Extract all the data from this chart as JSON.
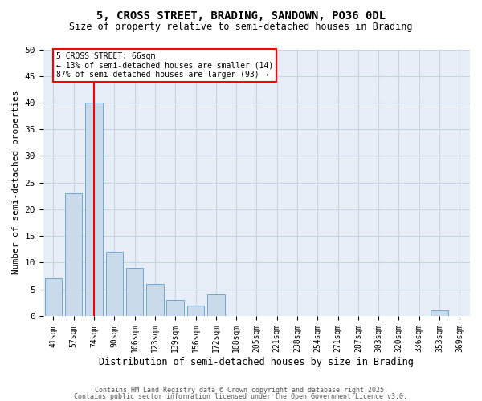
{
  "title_line1": "5, CROSS STREET, BRADING, SANDOWN, PO36 0DL",
  "title_line2": "Size of property relative to semi-detached houses in Brading",
  "xlabel": "Distribution of semi-detached houses by size in Brading",
  "ylabel": "Number of semi-detached properties",
  "categories": [
    "41sqm",
    "57sqm",
    "74sqm",
    "90sqm",
    "106sqm",
    "123sqm",
    "139sqm",
    "156sqm",
    "172sqm",
    "188sqm",
    "205sqm",
    "221sqm",
    "238sqm",
    "254sqm",
    "271sqm",
    "287sqm",
    "303sqm",
    "320sqm",
    "336sqm",
    "353sqm",
    "369sqm"
  ],
  "values": [
    7,
    23,
    40,
    12,
    9,
    6,
    3,
    2,
    4,
    0,
    0,
    0,
    0,
    0,
    0,
    0,
    0,
    0,
    0,
    1,
    0
  ],
  "bar_color": "#c9daea",
  "bar_edge_color": "#6aaad4",
  "grid_color": "#c8d4e4",
  "background_color": "#e8eef8",
  "vline_x": 2.0,
  "vline_color": "red",
  "annotation_text": "5 CROSS STREET: 66sqm\n← 13% of semi-detached houses are smaller (14)\n87% of semi-detached houses are larger (93) →",
  "ylim": [
    0,
    50
  ],
  "yticks": [
    0,
    5,
    10,
    15,
    20,
    25,
    30,
    35,
    40,
    45,
    50
  ],
  "footer_line1": "Contains HM Land Registry data © Crown copyright and database right 2025.",
  "footer_line2": "Contains public sector information licensed under the Open Government Licence v3.0."
}
